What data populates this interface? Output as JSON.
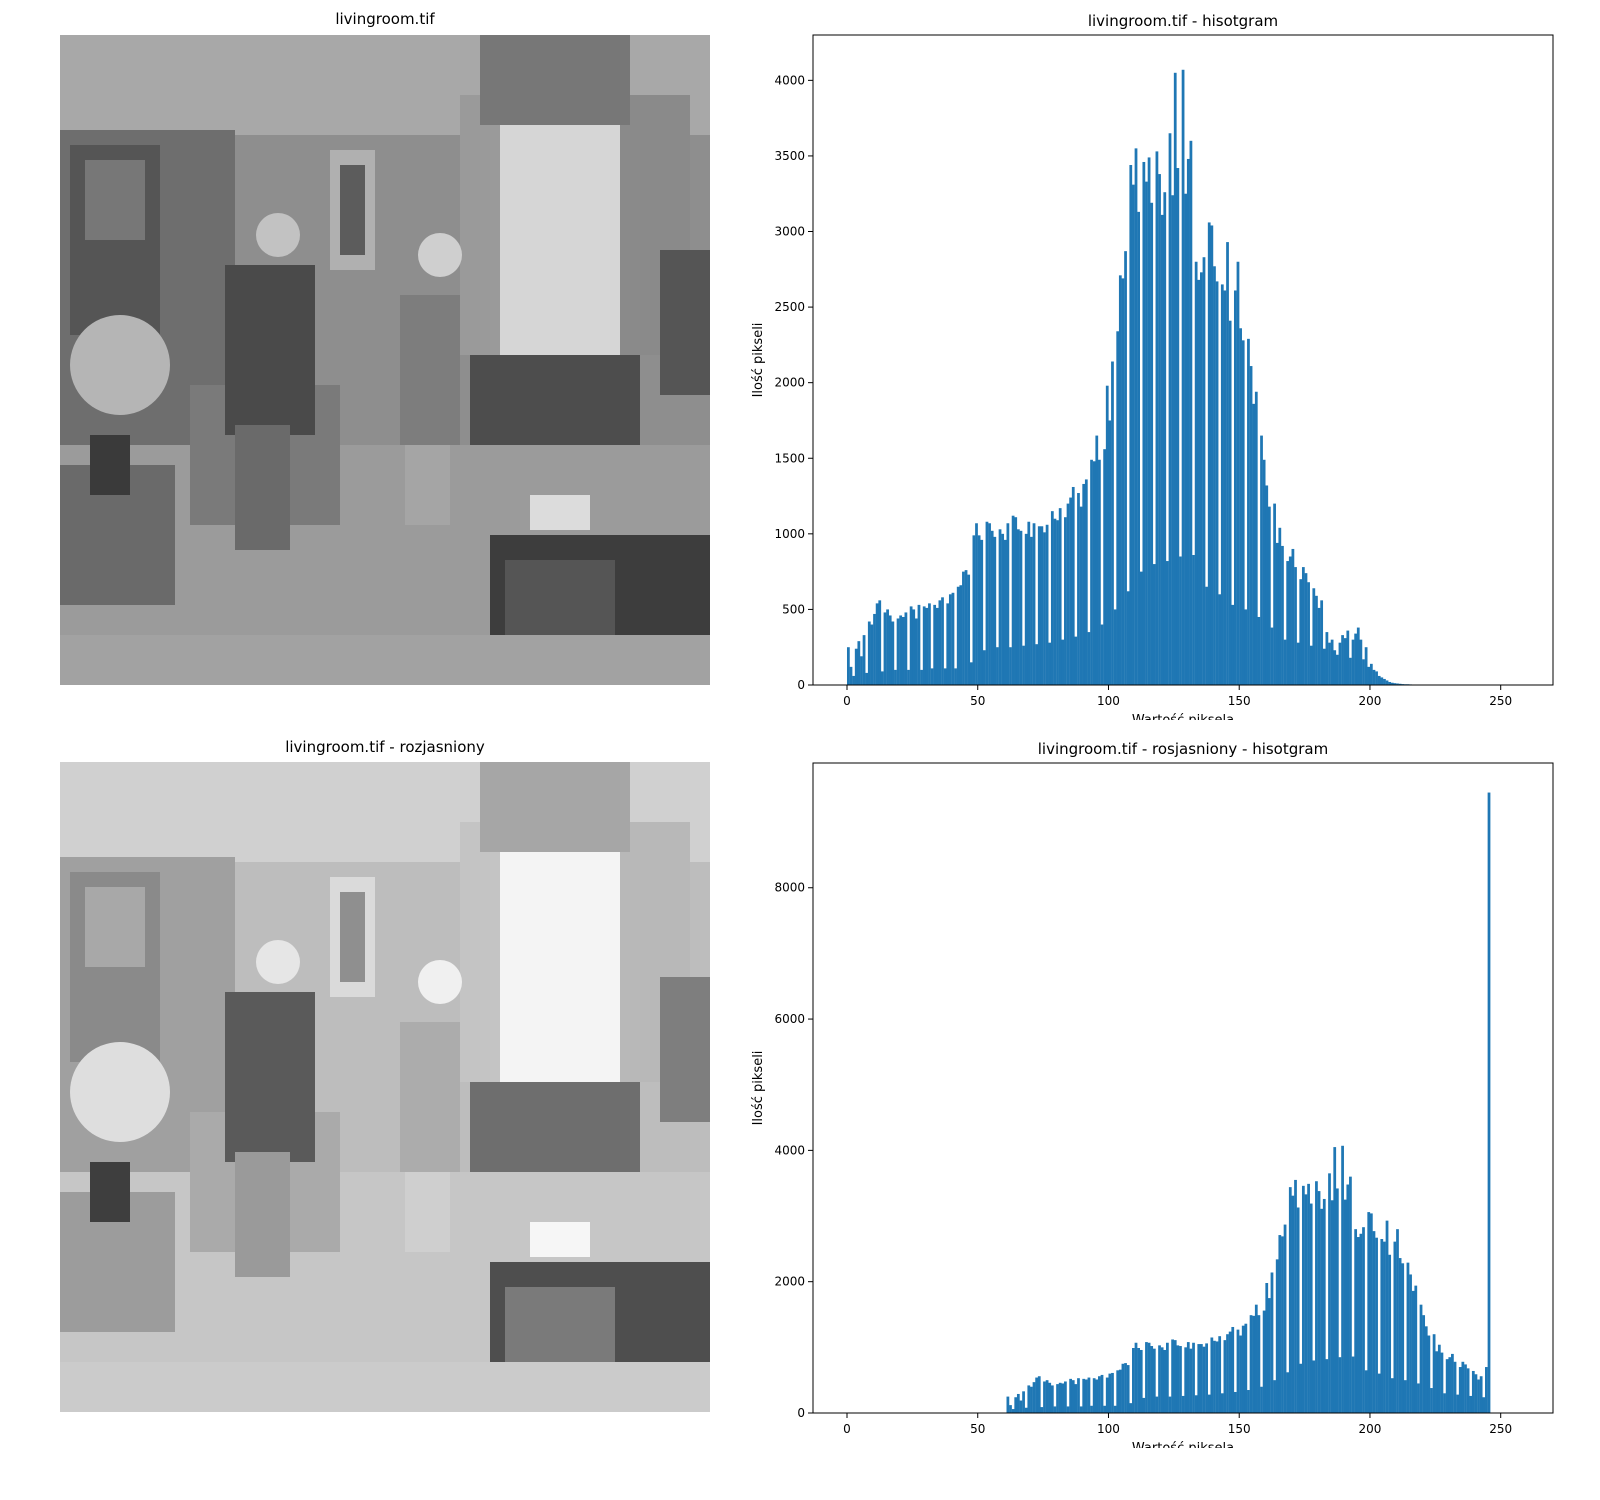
{
  "panels": {
    "top_left_title": "livingroom.tif",
    "bottom_left_title": "livingroom.tif - rozjasniony"
  },
  "colors": {
    "bar": "#1f77b4"
  },
  "chart_data": [
    {
      "type": "bar",
      "title": "livingroom.tif - hisotgram",
      "xlabel": "Wartość piksela",
      "ylabel": "Ilość pikseli",
      "xlim": [
        -13,
        270
      ],
      "ylim": [
        0,
        4300
      ],
      "xticks": [
        0,
        50,
        100,
        150,
        200,
        250
      ],
      "yticks": [
        0,
        500,
        1000,
        1500,
        2000,
        2500,
        3000,
        3500,
        4000
      ],
      "bins": {
        "start": 0,
        "width": 1
      },
      "values": [
        250,
        120,
        60,
        240,
        290,
        190,
        330,
        80,
        420,
        400,
        470,
        540,
        560,
        90,
        480,
        500,
        460,
        420,
        100,
        440,
        460,
        450,
        480,
        100,
        520,
        500,
        440,
        530,
        100,
        520,
        510,
        540,
        110,
        530,
        510,
        560,
        580,
        110,
        540,
        600,
        610,
        110,
        650,
        660,
        750,
        760,
        730,
        150,
        990,
        1070,
        990,
        960,
        230,
        1080,
        1070,
        1020,
        980,
        250,
        1030,
        1000,
        960,
        1070,
        250,
        1120,
        1110,
        1030,
        1020,
        260,
        1000,
        1080,
        980,
        1070,
        270,
        1050,
        1050,
        1010,
        1060,
        280,
        1150,
        1100,
        1090,
        1170,
        300,
        1110,
        1200,
        1240,
        1310,
        320,
        1270,
        1180,
        1330,
        1360,
        350,
        1490,
        1480,
        1650,
        1490,
        400,
        1560,
        1980,
        1750,
        2140,
        500,
        2340,
        2710,
        2690,
        2870,
        620,
        3440,
        3310,
        3550,
        3130,
        750,
        3460,
        3330,
        3490,
        3190,
        800,
        3530,
        3380,
        3110,
        3260,
        820,
        3650,
        3240,
        4050,
        3420,
        850,
        4070,
        3250,
        3480,
        3600,
        860,
        2800,
        2680,
        2730,
        2830,
        650,
        3060,
        3040,
        2770,
        2670,
        600,
        2650,
        2610,
        2930,
        2410,
        530,
        2610,
        2800,
        2360,
        2280,
        500,
        2290,
        2110,
        1860,
        1940,
        450,
        1650,
        1490,
        1320,
        1180,
        380,
        1200,
        940,
        1040,
        920,
        300,
        820,
        850,
        900,
        780,
        280,
        700,
        780,
        740,
        680,
        260,
        640,
        590,
        510,
        560,
        240,
        350,
        280,
        300,
        230,
        200,
        280,
        330,
        310,
        360,
        180,
        300,
        340,
        380,
        300,
        170,
        250,
        120,
        140,
        100,
        90,
        60,
        50,
        40,
        30,
        20,
        15,
        12,
        10,
        8,
        6,
        5,
        5,
        4,
        3,
        3,
        2,
        2,
        2,
        1,
        1,
        1,
        1,
        1,
        0,
        0,
        0,
        0,
        0,
        0,
        0,
        0,
        0,
        0,
        0,
        0,
        0,
        0,
        0,
        0,
        0,
        0,
        0,
        0,
        0,
        0,
        0,
        0,
        0,
        0,
        0
      ]
    },
    {
      "type": "bar",
      "title": "livingroom.tif - rosjasniony - hisotgram",
      "xlabel": "Wartość piksela",
      "ylabel": "Ilość pikseli",
      "xlim": [
        -13,
        270
      ],
      "ylim": [
        0,
        9900
      ],
      "xticks": [
        0,
        50,
        100,
        150,
        200,
        250
      ],
      "yticks": [
        0,
        2000,
        4000,
        6000,
        8000
      ],
      "bins": {
        "start": 0,
        "width": 1
      },
      "values": [
        0,
        0,
        0,
        0,
        0,
        0,
        0,
        0,
        0,
        0,
        0,
        0,
        0,
        0,
        0,
        0,
        0,
        0,
        0,
        0,
        0,
        0,
        0,
        0,
        0,
        0,
        0,
        0,
        0,
        0,
        0,
        0,
        0,
        0,
        0,
        0,
        0,
        0,
        0,
        0,
        0,
        0,
        0,
        0,
        0,
        0,
        0,
        0,
        0,
        0,
        0,
        0,
        0,
        0,
        0,
        0,
        0,
        0,
        0,
        0,
        0,
        250,
        120,
        60,
        240,
        290,
        190,
        330,
        80,
        420,
        400,
        470,
        540,
        560,
        90,
        480,
        500,
        460,
        420,
        100,
        440,
        460,
        450,
        480,
        100,
        520,
        500,
        440,
        530,
        100,
        520,
        510,
        540,
        110,
        530,
        510,
        560,
        580,
        110,
        540,
        600,
        610,
        110,
        650,
        660,
        750,
        760,
        730,
        150,
        990,
        1070,
        990,
        960,
        230,
        1080,
        1070,
        1020,
        980,
        250,
        1030,
        1000,
        960,
        1070,
        250,
        1120,
        1110,
        1030,
        1020,
        260,
        1000,
        1080,
        980,
        1070,
        270,
        1050,
        1050,
        1010,
        1060,
        280,
        1150,
        1100,
        1090,
        1170,
        300,
        1110,
        1200,
        1240,
        1310,
        320,
        1270,
        1180,
        1330,
        1360,
        350,
        1490,
        1480,
        1650,
        1490,
        400,
        1560,
        1980,
        1750,
        2140,
        500,
        2340,
        2710,
        2690,
        2870,
        620,
        3440,
        3310,
        3550,
        3130,
        750,
        3460,
        3330,
        3490,
        3190,
        800,
        3530,
        3380,
        3110,
        3260,
        820,
        3650,
        3240,
        4050,
        3420,
        850,
        4070,
        3250,
        3480,
        3600,
        860,
        2800,
        2680,
        2730,
        2830,
        650,
        3060,
        3040,
        2770,
        2670,
        600,
        2650,
        2610,
        2930,
        2410,
        530,
        2610,
        2800,
        2360,
        2280,
        500,
        2290,
        2110,
        1860,
        1940,
        450,
        1650,
        1490,
        1320,
        1180,
        380,
        1200,
        940,
        1040,
        920,
        300,
        820,
        850,
        900,
        780,
        280,
        700,
        780,
        740,
        680,
        260,
        640,
        590,
        510,
        560,
        240,
        700,
        9450
      ]
    }
  ]
}
